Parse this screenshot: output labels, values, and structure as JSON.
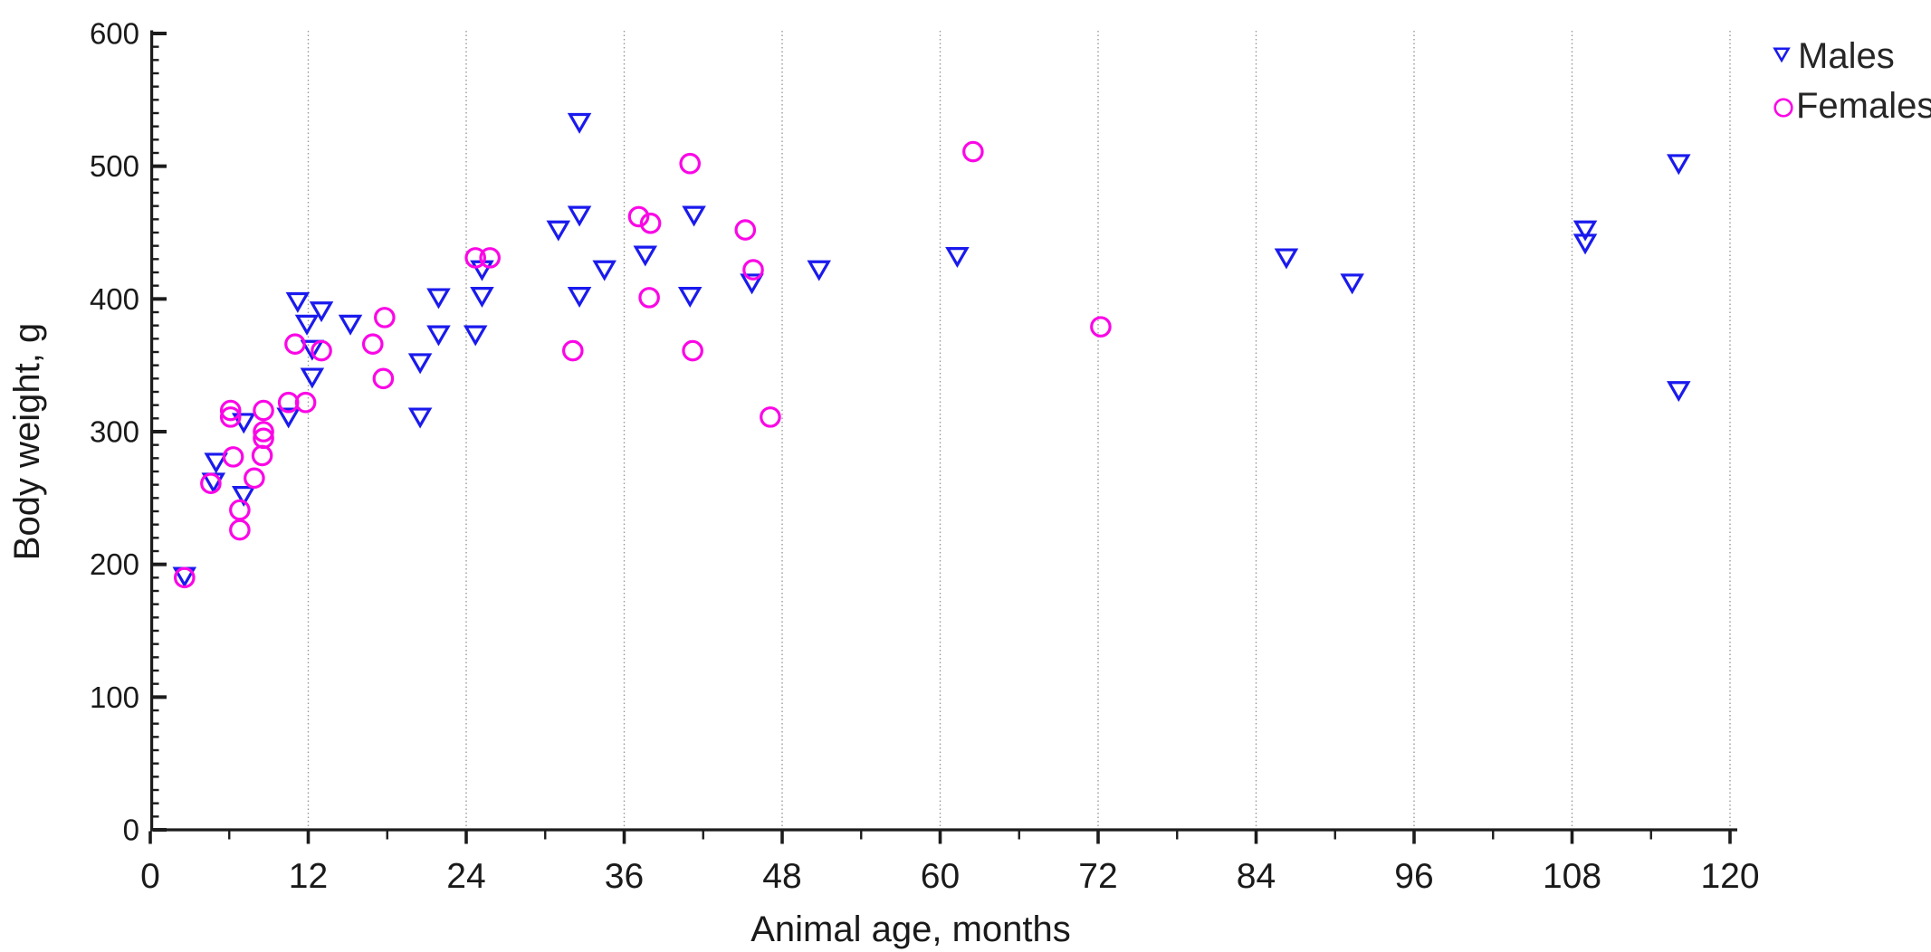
{
  "page": {
    "background": "#ffffff",
    "text_color": "#1a1a1a",
    "axis_color": "#1c1c1c"
  },
  "chart_data": {
    "type": "scatter",
    "title": "",
    "xlabel": "Animal age, months",
    "ylabel": "Body weight, g",
    "xlim": [
      0,
      120
    ],
    "ylim": [
      0,
      600
    ],
    "x_major_tick_step": 12,
    "x_minor_tick_step": 6,
    "y_major_tick_step": 100,
    "y_minor_tick_step": 10,
    "x_tick_labels": [
      "0",
      "12",
      "24",
      "36",
      "48",
      "60",
      "72",
      "84",
      "96",
      "108",
      "120"
    ],
    "y_tick_labels": [
      "0",
      "100",
      "200",
      "300",
      "400",
      "500",
      "600"
    ],
    "grid": {
      "vertical_months": [
        12,
        24,
        36,
        48,
        60,
        72,
        84,
        96,
        108,
        120
      ],
      "horizontal": false,
      "color": "#999999",
      "style": "dotted"
    },
    "legend": {
      "position": "top-right",
      "entries": [
        {
          "label": "Males",
          "marker": "open-triangle-down",
          "color": "#1a1aee"
        },
        {
          "label": "Females",
          "marker": "open-circle",
          "color": "#fb06e6"
        }
      ]
    },
    "series": [
      {
        "name": "Males",
        "marker": "open-triangle-down",
        "color": "#1a1aee",
        "points": [
          [
            2.6,
            191
          ],
          [
            4.8,
            262
          ],
          [
            5.0,
            277
          ],
          [
            7.1,
            252
          ],
          [
            7.1,
            307
          ],
          [
            10.5,
            311
          ],
          [
            11.2,
            398
          ],
          [
            11.9,
            381
          ],
          [
            12.3,
            362
          ],
          [
            12.3,
            341
          ],
          [
            13.0,
            391
          ],
          [
            15.2,
            381
          ],
          [
            20.5,
            352
          ],
          [
            20.5,
            311
          ],
          [
            21.9,
            401
          ],
          [
            21.9,
            373
          ],
          [
            24.7,
            373
          ],
          [
            25.2,
            422
          ],
          [
            25.2,
            402
          ],
          [
            31.0,
            452
          ],
          [
            32.6,
            533
          ],
          [
            32.6,
            463
          ],
          [
            32.6,
            402
          ],
          [
            34.5,
            422
          ],
          [
            37.6,
            433
          ],
          [
            41.0,
            402
          ],
          [
            41.3,
            463
          ],
          [
            45.7,
            412
          ],
          [
            50.8,
            422
          ],
          [
            61.3,
            432
          ],
          [
            86.3,
            431
          ],
          [
            91.3,
            412
          ],
          [
            109.0,
            452
          ],
          [
            109.0,
            442
          ],
          [
            116.1,
            502
          ],
          [
            116.1,
            331
          ]
        ]
      },
      {
        "name": "Females",
        "marker": "open-circle",
        "color": "#fb06e6",
        "points": [
          [
            2.6,
            190
          ],
          [
            4.6,
            261
          ],
          [
            6.1,
            316
          ],
          [
            6.1,
            311
          ],
          [
            6.3,
            281
          ],
          [
            6.8,
            241
          ],
          [
            6.8,
            226
          ],
          [
            7.9,
            265
          ],
          [
            8.5,
            282
          ],
          [
            8.6,
            316
          ],
          [
            8.6,
            300
          ],
          [
            8.6,
            295
          ],
          [
            10.5,
            322
          ],
          [
            11.0,
            366
          ],
          [
            11.8,
            322
          ],
          [
            13.0,
            361
          ],
          [
            16.9,
            366
          ],
          [
            17.8,
            386
          ],
          [
            17.7,
            340
          ],
          [
            24.7,
            431
          ],
          [
            25.8,
            431
          ],
          [
            32.1,
            361
          ],
          [
            37.1,
            462
          ],
          [
            38.0,
            457
          ],
          [
            37.9,
            401
          ],
          [
            41.0,
            502
          ],
          [
            41.2,
            361
          ],
          [
            45.2,
            452
          ],
          [
            45.8,
            422
          ],
          [
            47.1,
            311
          ],
          [
            62.5,
            511
          ],
          [
            72.2,
            379
          ]
        ]
      }
    ]
  }
}
